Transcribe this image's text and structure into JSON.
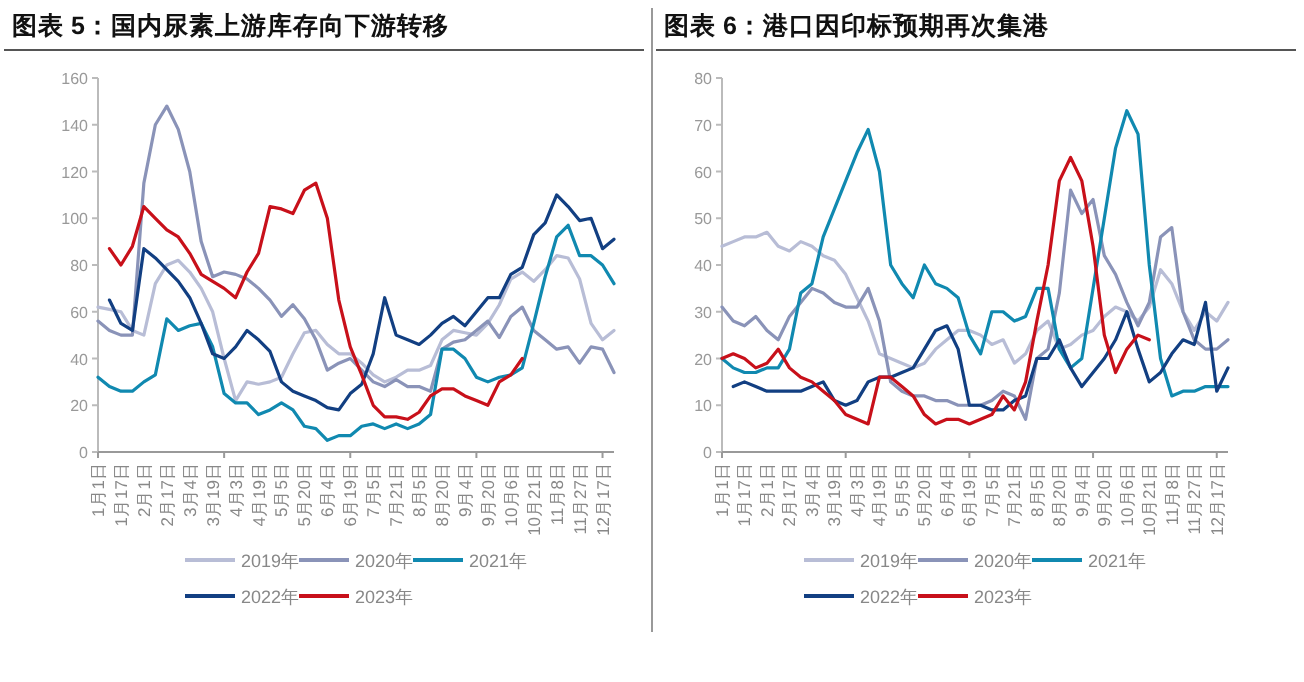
{
  "chart_data": [
    {
      "type": "line",
      "title": "图表 5：国内尿素上游库存向下游转移",
      "legend": "bottom",
      "categories": [
        "1月1日",
        null,
        "1月17日",
        null,
        "2月1日",
        null,
        "2月17日",
        null,
        "3月4日",
        null,
        "3月19日",
        null,
        "4月3日",
        null,
        "4月19日",
        null,
        "5月5日",
        null,
        "5月20日",
        null,
        "6月4日",
        null,
        "6月19日",
        null,
        "7月5日",
        null,
        "7月21日",
        null,
        "8月5日",
        null,
        "8月20日",
        null,
        "9月4日",
        null,
        "9月20日",
        null,
        "10月6日",
        null,
        "10月21日",
        null,
        "11月8日",
        null,
        "11月27日",
        null,
        "12月17日",
        null
      ],
      "ylim": [
        0,
        160
      ],
      "yticks": [
        0,
        20,
        40,
        60,
        80,
        100,
        120,
        140,
        160
      ],
      "series": [
        {
          "name": "2019年",
          "color": "#b8bdd6",
          "values": [
            62,
            61,
            60,
            52,
            50,
            72,
            80,
            82,
            77,
            70,
            60,
            40,
            22,
            30,
            29,
            30,
            32,
            42,
            51,
            52,
            46,
            42,
            42,
            38,
            33,
            30,
            32,
            35,
            35,
            37,
            48,
            52,
            51,
            50,
            55,
            63,
            74,
            77,
            73,
            78,
            84,
            83,
            74,
            55,
            48,
            52
          ]
        },
        {
          "name": "2020年",
          "color": "#8a93b8",
          "values": [
            56,
            52,
            50,
            50,
            115,
            140,
            148,
            138,
            120,
            90,
            75,
            77,
            76,
            74,
            70,
            65,
            58,
            63,
            57,
            48,
            35,
            38,
            40,
            35,
            30,
            28,
            31,
            28,
            28,
            26,
            44,
            47,
            48,
            52,
            56,
            49,
            58,
            62,
            52,
            48,
            44,
            45,
            38,
            45,
            44,
            34
          ]
        },
        {
          "name": "2021年",
          "color": "#1089b0",
          "values": [
            32,
            28,
            26,
            26,
            30,
            33,
            57,
            52,
            54,
            55,
            45,
            25,
            21,
            21,
            16,
            18,
            21,
            18,
            11,
            10,
            5,
            7,
            7,
            11,
            12,
            10,
            12,
            10,
            12,
            16,
            44,
            44,
            40,
            32,
            30,
            32,
            33,
            36,
            55,
            75,
            92,
            97,
            84,
            84,
            80,
            72
          ]
        },
        {
          "name": "2022年",
          "color": "#123f82",
          "values": [
            null,
            65,
            55,
            52,
            87,
            83,
            78,
            73,
            66,
            55,
            42,
            40,
            45,
            52,
            48,
            43,
            30,
            26,
            24,
            22,
            19,
            18,
            25,
            29,
            42,
            66,
            50,
            48,
            46,
            50,
            55,
            58,
            54,
            60,
            66,
            66,
            76,
            79,
            93,
            98,
            110,
            105,
            99,
            100,
            87,
            91
          ]
        },
        {
          "name": "2023年",
          "color": "#c8101a",
          "values": [
            null,
            87,
            80,
            88,
            105,
            100,
            95,
            92,
            85,
            76,
            73,
            70,
            66,
            77,
            85,
            105,
            104,
            102,
            112,
            115,
            100,
            65,
            45,
            33,
            20,
            15,
            15,
            14,
            17,
            24,
            27,
            27,
            24,
            22,
            20,
            30,
            33,
            40,
            null,
            null,
            null,
            null,
            null,
            null,
            null,
            null
          ]
        }
      ]
    },
    {
      "type": "line",
      "title": "图表 6：港口因印标预期再次集港",
      "legend": "bottom",
      "categories": [
        "1月1日",
        null,
        "1月17日",
        null,
        "2月1日",
        null,
        "2月17日",
        null,
        "3月4日",
        null,
        "3月19日",
        null,
        "4月3日",
        null,
        "4月19日",
        null,
        "5月5日",
        null,
        "5月20日",
        null,
        "6月4日",
        null,
        "6月19日",
        null,
        "7月5日",
        null,
        "7月21日",
        null,
        "8月5日",
        null,
        "8月20日",
        null,
        "9月4日",
        null,
        "9月20日",
        null,
        "10月6日",
        null,
        "10月21日",
        null,
        "11月8日",
        null,
        "11月27日",
        null,
        "12月17日",
        null
      ],
      "ylim": [
        0,
        80
      ],
      "yticks": [
        0,
        10,
        20,
        30,
        40,
        50,
        60,
        70,
        80
      ],
      "series": [
        {
          "name": "2019年",
          "color": "#b8bdd6",
          "values": [
            44,
            45,
            46,
            46,
            47,
            44,
            43,
            45,
            44,
            42,
            41,
            38,
            33,
            28,
            21,
            20,
            19,
            18,
            19,
            22,
            24,
            26,
            26,
            25,
            23,
            24,
            19,
            21,
            26,
            28,
            22,
            23,
            25,
            26,
            29,
            31,
            30,
            28,
            31,
            39,
            36,
            30,
            26,
            30,
            28,
            32
          ]
        },
        {
          "name": "2020年",
          "color": "#8a93b8",
          "values": [
            31,
            28,
            27,
            29,
            26,
            24,
            29,
            32,
            35,
            34,
            32,
            31,
            31,
            35,
            28,
            15,
            13,
            12,
            12,
            11,
            11,
            10,
            10,
            10,
            11,
            13,
            12,
            7,
            20,
            22,
            34,
            56,
            51,
            54,
            42,
            38,
            32,
            27,
            32,
            46,
            48,
            30,
            24,
            22,
            22,
            24
          ]
        },
        {
          "name": "2021年",
          "color": "#1089b0",
          "values": [
            20,
            18,
            17,
            17,
            18,
            18,
            22,
            34,
            36,
            46,
            52,
            58,
            64,
            69,
            60,
            40,
            36,
            33,
            40,
            36,
            35,
            33,
            25,
            21,
            30,
            30,
            28,
            29,
            35,
            35,
            22,
            18,
            20,
            35,
            50,
            65,
            73,
            68,
            40,
            20,
            12,
            13,
            13,
            14,
            14,
            14
          ]
        },
        {
          "name": "2022年",
          "color": "#123f82",
          "values": [
            null,
            14,
            15,
            14,
            13,
            13,
            13,
            13,
            14,
            15,
            11,
            10,
            11,
            15,
            16,
            16,
            17,
            18,
            22,
            26,
            27,
            22,
            10,
            10,
            9,
            9,
            11,
            12,
            20,
            20,
            24,
            18,
            14,
            17,
            20,
            24,
            30,
            22,
            15,
            17,
            21,
            24,
            23,
            32,
            13,
            18
          ]
        },
        {
          "name": "2023年",
          "color": "#c8101a",
          "values": [
            20,
            21,
            20,
            18,
            19,
            22,
            18,
            16,
            15,
            13,
            11,
            8,
            7,
            6,
            16,
            16,
            14,
            12,
            8,
            6,
            7,
            7,
            6,
            7,
            8,
            12,
            9,
            15,
            28,
            40,
            58,
            63,
            58,
            44,
            25,
            17,
            22,
            25,
            24,
            null,
            null,
            null,
            null,
            null,
            null,
            null
          ]
        }
      ]
    }
  ]
}
